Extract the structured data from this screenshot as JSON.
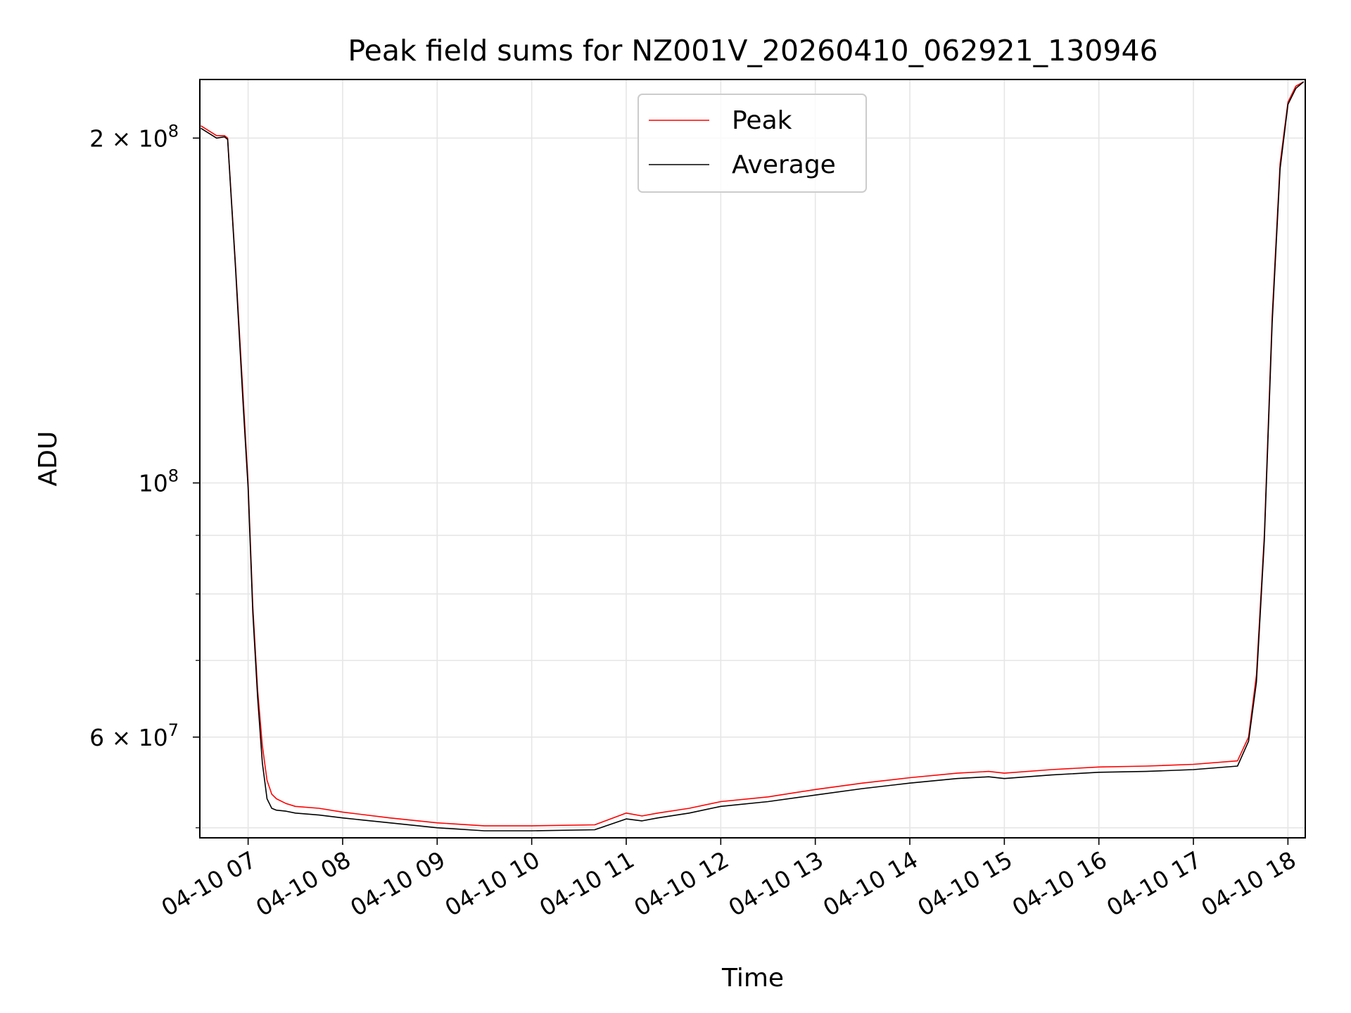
{
  "chart_data": {
    "type": "line",
    "title": "Peak field sums for NZ001V_20260410_062921_130946",
    "xlabel": "Time",
    "ylabel": "ADU",
    "yscale": "log",
    "xlim": [
      "2026-04-10 06:29:21",
      "2026-04-10 18:11:00"
    ],
    "ylim": [
      49000000,
      225000000
    ],
    "x_ticks": [
      "04-10 07",
      "04-10 08",
      "04-10 09",
      "04-10 10",
      "04-10 11",
      "04-10 12",
      "04-10 13",
      "04-10 14",
      "04-10 15",
      "04-10 16",
      "04-10 17",
      "04-10 18"
    ],
    "y_major_ticks": [
      {
        "value": 200000000,
        "base": "2 × 10",
        "exp": "8"
      },
      {
        "value": 100000000,
        "base": "10",
        "exp": "8"
      },
      {
        "value": 60000000,
        "base": "6 × 10",
        "exp": "7"
      }
    ],
    "y_minor_ticks": [
      90000000,
      80000000,
      70000000,
      50000000
    ],
    "grid": true,
    "legend_position": "upper center",
    "series": [
      {
        "name": "Peak",
        "color": "#ff0000",
        "x": [
          "2026-04-10 06:30",
          "2026-04-10 06:40",
          "2026-04-10 06:45",
          "2026-04-10 06:47",
          "2026-04-10 06:52",
          "2026-04-10 06:57",
          "2026-04-10 07:00",
          "2026-04-10 07:03",
          "2026-04-10 07:06",
          "2026-04-10 07:09",
          "2026-04-10 07:12",
          "2026-04-10 07:15",
          "2026-04-10 07:18",
          "2026-04-10 07:24",
          "2026-04-10 07:30",
          "2026-04-10 07:45",
          "2026-04-10 08:00",
          "2026-04-10 08:30",
          "2026-04-10 09:00",
          "2026-04-10 09:30",
          "2026-04-10 10:00",
          "2026-04-10 10:40",
          "2026-04-10 11:00",
          "2026-04-10 11:10",
          "2026-04-10 11:20",
          "2026-04-10 11:40",
          "2026-04-10 12:00",
          "2026-04-10 12:30",
          "2026-04-10 13:00",
          "2026-04-10 13:30",
          "2026-04-10 14:00",
          "2026-04-10 14:30",
          "2026-04-10 14:50",
          "2026-04-10 15:00",
          "2026-04-10 15:30",
          "2026-04-10 16:00",
          "2026-04-10 16:30",
          "2026-04-10 17:00",
          "2026-04-10 17:28",
          "2026-04-10 17:35",
          "2026-04-10 17:40",
          "2026-04-10 17:45",
          "2026-04-10 17:50",
          "2026-04-10 17:55",
          "2026-04-10 18:00",
          "2026-04-10 18:05",
          "2026-04-10 18:10"
        ],
        "y": [
          205000000,
          201000000,
          201000000,
          200000000,
          155000000,
          118000000,
          100000000,
          78000000,
          66000000,
          59000000,
          55000000,
          53500000,
          53000000,
          52500000,
          52200000,
          52000000,
          51600000,
          51000000,
          50500000,
          50200000,
          50200000,
          50300000,
          51500000,
          51200000,
          51500000,
          52000000,
          52700000,
          53200000,
          54000000,
          54700000,
          55300000,
          55800000,
          56000000,
          55800000,
          56200000,
          56500000,
          56600000,
          56800000,
          57200000,
          60000000,
          68000000,
          90000000,
          140000000,
          190000000,
          215000000,
          222000000,
          224000000
        ]
      },
      {
        "name": "Average",
        "color": "#000000",
        "x": [
          "2026-04-10 06:30",
          "2026-04-10 06:40",
          "2026-04-10 06:45",
          "2026-04-10 06:47",
          "2026-04-10 06:52",
          "2026-04-10 06:57",
          "2026-04-10 07:00",
          "2026-04-10 07:03",
          "2026-04-10 07:06",
          "2026-04-10 07:09",
          "2026-04-10 07:12",
          "2026-04-10 07:15",
          "2026-04-10 07:18",
          "2026-04-10 07:24",
          "2026-04-10 07:30",
          "2026-04-10 07:45",
          "2026-04-10 08:00",
          "2026-04-10 08:30",
          "2026-04-10 09:00",
          "2026-04-10 09:30",
          "2026-04-10 10:00",
          "2026-04-10 10:40",
          "2026-04-10 11:00",
          "2026-04-10 11:10",
          "2026-04-10 11:20",
          "2026-04-10 11:40",
          "2026-04-10 12:00",
          "2026-04-10 12:30",
          "2026-04-10 13:00",
          "2026-04-10 13:30",
          "2026-04-10 14:00",
          "2026-04-10 14:30",
          "2026-04-10 14:50",
          "2026-04-10 15:00",
          "2026-04-10 15:30",
          "2026-04-10 16:00",
          "2026-04-10 16:30",
          "2026-04-10 17:00",
          "2026-04-10 17:28",
          "2026-04-10 17:35",
          "2026-04-10 17:40",
          "2026-04-10 17:45",
          "2026-04-10 17:50",
          "2026-04-10 17:55",
          "2026-04-10 18:00",
          "2026-04-10 18:05",
          "2026-04-10 18:10"
        ],
        "y": [
          204000000,
          200000000,
          200500000,
          199500000,
          154000000,
          116000000,
          99000000,
          77000000,
          65000000,
          57000000,
          53000000,
          52000000,
          51800000,
          51700000,
          51500000,
          51300000,
          51000000,
          50500000,
          50000000,
          49700000,
          49700000,
          49800000,
          50900000,
          50700000,
          51000000,
          51500000,
          52200000,
          52700000,
          53400000,
          54100000,
          54700000,
          55200000,
          55400000,
          55200000,
          55600000,
          55900000,
          56000000,
          56200000,
          56600000,
          59500000,
          67000000,
          89000000,
          138000000,
          188000000,
          214000000,
          221000000,
          224000000
        ]
      }
    ]
  }
}
